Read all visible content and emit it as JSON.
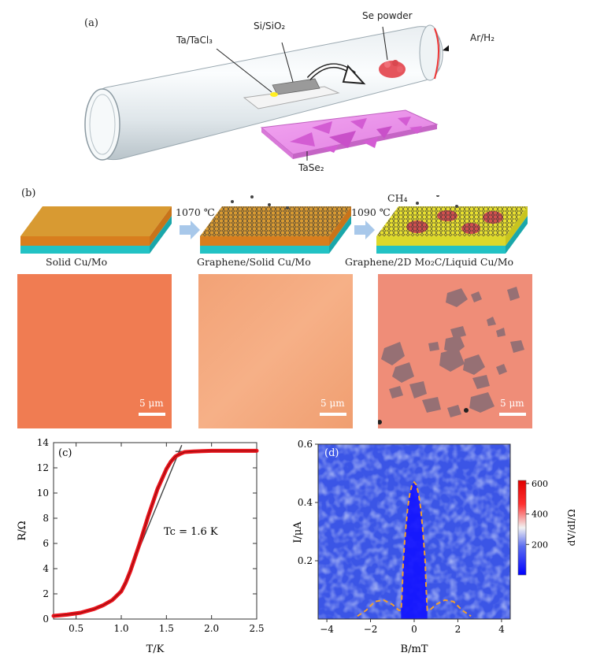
{
  "panel_a": {
    "label": "(a)",
    "labels": {
      "precursor": "Ta/TaCl₃",
      "substrate": "Si/SiO₂",
      "se": "Se powder",
      "gas": "Ar/H₂",
      "product": "TaSe₂"
    }
  },
  "panel_b": {
    "label": "(b)",
    "temps": [
      "1070 ℃",
      "1090 ℃"
    ],
    "gas": "CH₄",
    "stages": [
      "Solid Cu/Mo",
      "Graphene/Solid Cu/Mo",
      "Graphene/2D Mo₂C/Liquid Cu/Mo"
    ],
    "scale_bar": "5 μm"
  },
  "chart_data": [
    {
      "type": "line",
      "panel": "(c)",
      "xlabel": "T/K",
      "ylabel": "R/Ω",
      "xlim": [
        0.25,
        2.5
      ],
      "ylim": [
        0,
        14
      ],
      "xticks": [
        0.5,
        1.0,
        1.5,
        2.0,
        2.5
      ],
      "yticks": [
        0,
        2,
        4,
        6,
        8,
        10,
        12,
        14
      ],
      "annotation": "Tc = 1.6 K",
      "series": [
        {
          "color": "#e8141c",
          "x": [
            0.25,
            0.4,
            0.55,
            0.7,
            0.8,
            0.9,
            1.0,
            1.05,
            1.1,
            1.2,
            1.3,
            1.4,
            1.5,
            1.55,
            1.6,
            1.65,
            1.7,
            1.8,
            2.0,
            2.2,
            2.5
          ],
          "y": [
            0.25,
            0.35,
            0.5,
            0.8,
            1.1,
            1.5,
            2.2,
            2.9,
            3.8,
            5.9,
            8.2,
            10.3,
            11.9,
            12.5,
            12.9,
            13.1,
            13.25,
            13.3,
            13.35,
            13.35,
            13.35
          ]
        }
      ],
      "fit_lines": [
        {
          "x": [
            1.05,
            1.67
          ],
          "y": [
            3.0,
            13.8
          ]
        },
        {
          "x": [
            1.6,
            2.5
          ],
          "y": [
            13.3,
            13.3
          ]
        }
      ]
    },
    {
      "type": "heatmap",
      "panel": "(d)",
      "xlabel": "B/mT",
      "ylabel": "I/μA",
      "xlim": [
        -4.4,
        4.4
      ],
      "ylim": [
        0,
        0.6
      ],
      "xticks": [
        -4,
        -2,
        0,
        2,
        4
      ],
      "yticks": [
        0.2,
        0.4,
        0.6
      ],
      "colorbar": {
        "label": "dV/dI/Ω",
        "ticks": [
          200,
          400,
          600
        ],
        "range": [
          0,
          620
        ]
      },
      "critical_current_contour": {
        "x": [
          -2.6,
          -2.2,
          -1.8,
          -1.4,
          -1.0,
          -0.7,
          -0.6,
          -0.55,
          -0.5,
          -0.4,
          -0.3,
          -0.2,
          -0.1,
          0.0,
          0.1,
          0.2,
          0.3,
          0.4,
          0.5,
          0.55,
          0.6,
          0.7,
          1.0,
          1.4,
          1.8,
          2.2,
          2.6
        ],
        "y": [
          0.01,
          0.03,
          0.06,
          0.065,
          0.05,
          0.03,
          0.03,
          0.1,
          0.2,
          0.3,
          0.38,
          0.43,
          0.46,
          0.47,
          0.46,
          0.43,
          0.38,
          0.3,
          0.2,
          0.1,
          0.03,
          0.03,
          0.05,
          0.065,
          0.06,
          0.03,
          0.01
        ]
      }
    }
  ]
}
